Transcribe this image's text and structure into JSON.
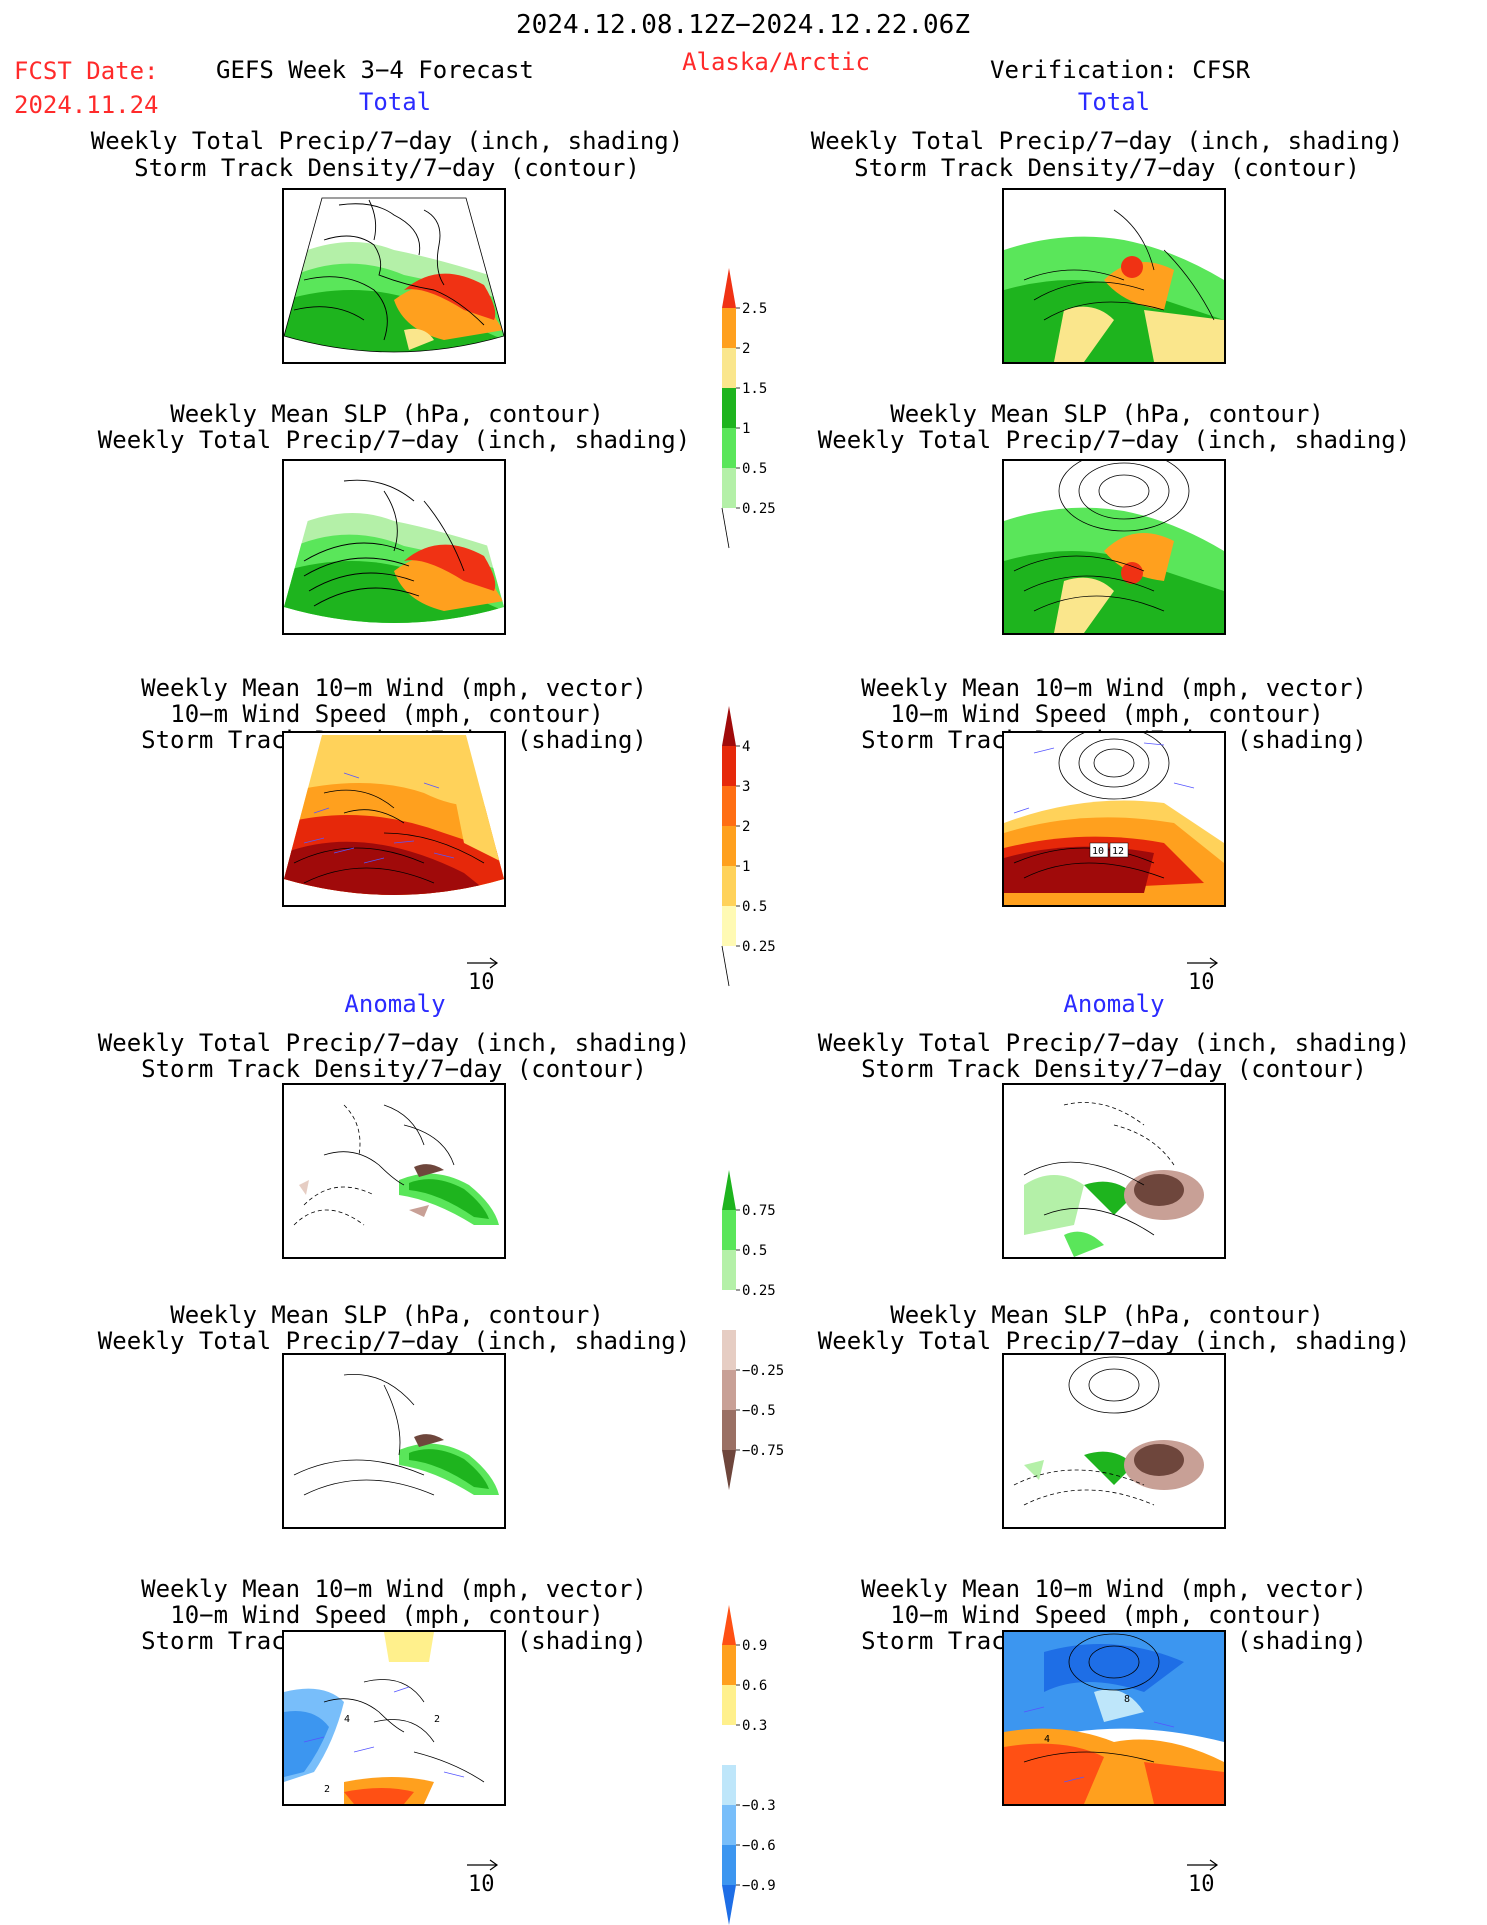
{
  "header": {
    "date_range": "2024.12.08.12Z−2024.12.22.06Z",
    "fcst_label": "FCST Date:",
    "fcst_date": "2024.11.24",
    "product": "GEFS Week 3−4 Forecast",
    "region": "Alaska/Arctic",
    "verification": "Verification: CFSR"
  },
  "sections": {
    "total": "Total",
    "anomaly": "Anomaly"
  },
  "panel_titles": {
    "precip_storm": [
      "Weekly Total Precip/7−day (inch, shading)",
      "Storm Track Density/7−day (contour)"
    ],
    "slp_precip": [
      "Weekly Mean SLP (hPa, contour)",
      "Weekly Total Precip/7−day (inch, shading)"
    ],
    "wind_storm": [
      "Weekly Mean 10−m Wind (mph, vector)",
      "10−m Wind Speed (mph, contour)",
      "Storm Track Density/7−day (shading)"
    ]
  },
  "vector_reference": "10",
  "map_labels": {
    "cfsr_total_wind": [
      "10",
      "12"
    ],
    "gefs_anom_wind": [
      "4",
      "2",
      "2"
    ],
    "cfsr_anom_wind": [
      "4",
      "8"
    ]
  },
  "colors": {
    "title_red": "#ff2a2a",
    "section_blue": "#2b2bff",
    "land_outline": "#000000",
    "vector": "#5555ff"
  },
  "chart_data": [
    {
      "type": "heatmap",
      "name": "precip-total-colorbar",
      "tick_labels": [
        "0.25",
        "0.5",
        "1",
        "1.5",
        "2",
        "2.5"
      ],
      "colors": [
        "#b4f0a8",
        "#5ae65a",
        "#1eb41e",
        "#fae68c",
        "#ffa01e",
        "#f03214"
      ]
    },
    {
      "type": "heatmap",
      "name": "storm-track-total-colorbar",
      "tick_labels": [
        "0.25",
        "0.5",
        "1",
        "2",
        "3",
        "4"
      ],
      "colors": [
        "#fffab4",
        "#ffd25a",
        "#ffa01e",
        "#ff6e14",
        "#e6280a",
        "#a00a0a"
      ]
    },
    {
      "type": "heatmap",
      "name": "precip-anomaly-colorbar",
      "tick_labels": [
        "−0.75",
        "−0.5",
        "−0.25",
        "0.25",
        "0.5",
        "0.75"
      ],
      "colors": [
        "#6e463c",
        "#9a7064",
        "#c8a096",
        "#e6cdc3",
        "#ffffff",
        "#b4f0a8",
        "#5ae65a",
        "#1eb41e"
      ]
    },
    {
      "type": "heatmap",
      "name": "storm-track-anomaly-colorbar",
      "tick_labels": [
        "−0.9",
        "−0.6",
        "−0.3",
        "0.3",
        "0.6",
        "0.9"
      ],
      "colors": [
        "#1e6ee6",
        "#3c96f0",
        "#78befa",
        "#bee6fa",
        "#ffffff",
        "#fff08c",
        "#ffa01e",
        "#ff5014"
      ]
    }
  ]
}
